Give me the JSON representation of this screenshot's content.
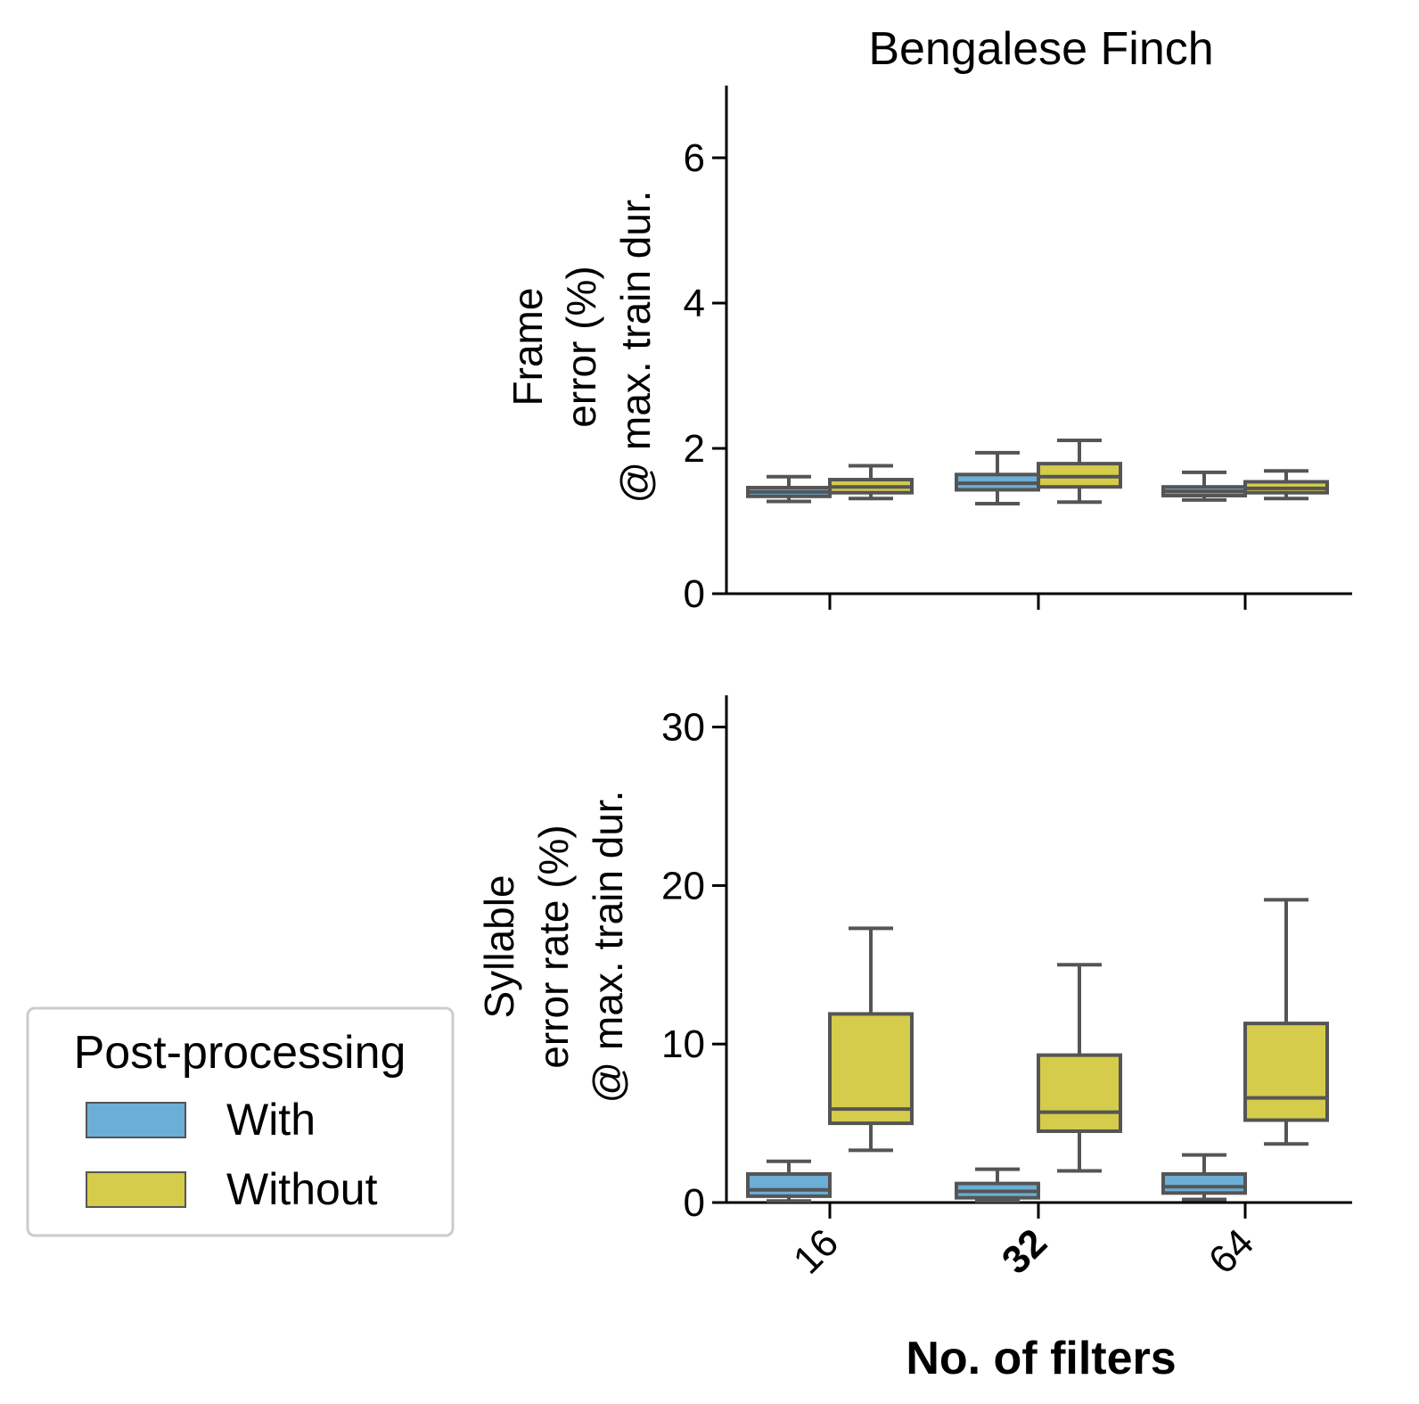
{
  "chart_data": [
    {
      "type": "box",
      "title": "Bengalese Finch",
      "ylabel_lines": [
        "Frame",
        "error (%)",
        "@ max. train dur."
      ],
      "xlabel": "",
      "ylim": [
        0,
        7
      ],
      "yticks": [
        "0",
        "2",
        "4",
        "6"
      ],
      "categories": [
        "16",
        "32",
        "64"
      ],
      "series": [
        {
          "name": "With",
          "color": "#6baed6",
          "boxes": [
            {
              "whisker_low": 1.27,
              "q1": 1.34,
              "median": 1.4,
              "q3": 1.46,
              "whisker_high": 1.61
            },
            {
              "whisker_low": 1.24,
              "q1": 1.43,
              "median": 1.52,
              "q3": 1.64,
              "whisker_high": 1.94
            },
            {
              "whisker_low": 1.29,
              "q1": 1.35,
              "median": 1.41,
              "q3": 1.47,
              "whisker_high": 1.67
            }
          ]
        },
        {
          "name": "Without",
          "color": "#d4cc4a",
          "boxes": [
            {
              "whisker_low": 1.31,
              "q1": 1.39,
              "median": 1.47,
              "q3": 1.57,
              "whisker_high": 1.76
            },
            {
              "whisker_low": 1.26,
              "q1": 1.47,
              "median": 1.61,
              "q3": 1.79,
              "whisker_high": 2.11
            },
            {
              "whisker_low": 1.31,
              "q1": 1.39,
              "median": 1.45,
              "q3": 1.54,
              "whisker_high": 1.69
            }
          ]
        }
      ]
    },
    {
      "type": "box",
      "title": "",
      "ylabel_lines": [
        "Syllable",
        "error rate (%)",
        "@ max. train dur."
      ],
      "xlabel": "No. of filters",
      "ylim": [
        0,
        32
      ],
      "yticks": [
        "0",
        "10",
        "20",
        "30"
      ],
      "categories": [
        "16",
        "32",
        "64"
      ],
      "bold_category": "32",
      "series": [
        {
          "name": "With",
          "color": "#6baed6",
          "boxes": [
            {
              "whisker_low": 0.1,
              "q1": 0.4,
              "median": 0.8,
              "q3": 1.8,
              "whisker_high": 2.6
            },
            {
              "whisker_low": 0.1,
              "q1": 0.3,
              "median": 0.7,
              "q3": 1.2,
              "whisker_high": 2.1
            },
            {
              "whisker_low": 0.2,
              "q1": 0.6,
              "median": 1.0,
              "q3": 1.8,
              "whisker_high": 3.0
            }
          ]
        },
        {
          "name": "Without",
          "color": "#d4cc4a",
          "boxes": [
            {
              "whisker_low": 3.3,
              "q1": 5.0,
              "median": 5.9,
              "q3": 11.9,
              "whisker_high": 17.3
            },
            {
              "whisker_low": 2.0,
              "q1": 4.5,
              "median": 5.7,
              "q3": 9.3,
              "whisker_high": 15.0
            },
            {
              "whisker_low": 3.7,
              "q1": 5.2,
              "median": 6.6,
              "q3": 11.3,
              "whisker_high": 19.1
            }
          ]
        }
      ]
    }
  ],
  "legend": {
    "title": "Post-processing",
    "items": [
      {
        "label": "With",
        "color": "#6baed6"
      },
      {
        "label": "Without",
        "color": "#d4cc4a"
      }
    ]
  }
}
